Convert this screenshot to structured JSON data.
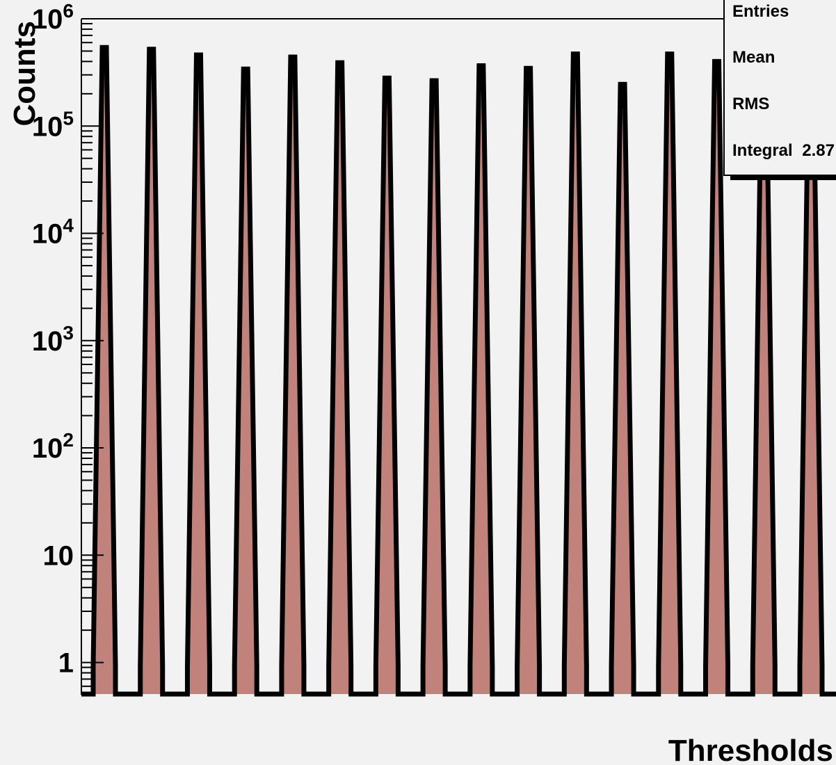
{
  "chart_data": {
    "type": "bar",
    "title": "",
    "xlabel": "Thresholds",
    "ylabel": "Counts",
    "yscale": "log",
    "ylim": [
      0.5,
      1000000
    ],
    "yticks": [
      {
        "value": 1,
        "base": "1",
        "exp": ""
      },
      {
        "value": 10,
        "base": "10",
        "exp": ""
      },
      {
        "value": 100,
        "base": "10",
        "exp": "2"
      },
      {
        "value": 1000,
        "base": "10",
        "exp": "3"
      },
      {
        "value": 10000,
        "base": "10",
        "exp": "4"
      },
      {
        "value": 100000,
        "base": "10",
        "exp": "5"
      },
      {
        "value": 1000000,
        "base": "10",
        "exp": "6"
      }
    ],
    "x_tick_labels_visible": false,
    "fill_color": "#c0827a",
    "line_color": "#000000",
    "peaks": [
      {
        "index": 1,
        "value": 540000
      },
      {
        "index": 2,
        "value": 520000
      },
      {
        "index": 3,
        "value": 460000
      },
      {
        "index": 4,
        "value": 340000
      },
      {
        "index": 5,
        "value": 440000
      },
      {
        "index": 6,
        "value": 390000
      },
      {
        "index": 7,
        "value": 280000
      },
      {
        "index": 8,
        "value": 265000
      },
      {
        "index": 9,
        "value": 365000
      },
      {
        "index": 10,
        "value": 345000
      },
      {
        "index": 11,
        "value": 470000
      },
      {
        "index": 12,
        "value": 245000
      },
      {
        "index": 13,
        "value": 470000
      },
      {
        "index": 14,
        "value": 400000
      },
      {
        "index": 15,
        "value": 560000
      },
      {
        "index": 16,
        "value": 550000
      }
    ]
  },
  "stats_box": {
    "rows": [
      {
        "label": "Entries",
        "value": ""
      },
      {
        "label": "Mean",
        "value": ""
      },
      {
        "label": "RMS",
        "value": ""
      },
      {
        "label": "Integral",
        "value": "2.87"
      }
    ]
  }
}
